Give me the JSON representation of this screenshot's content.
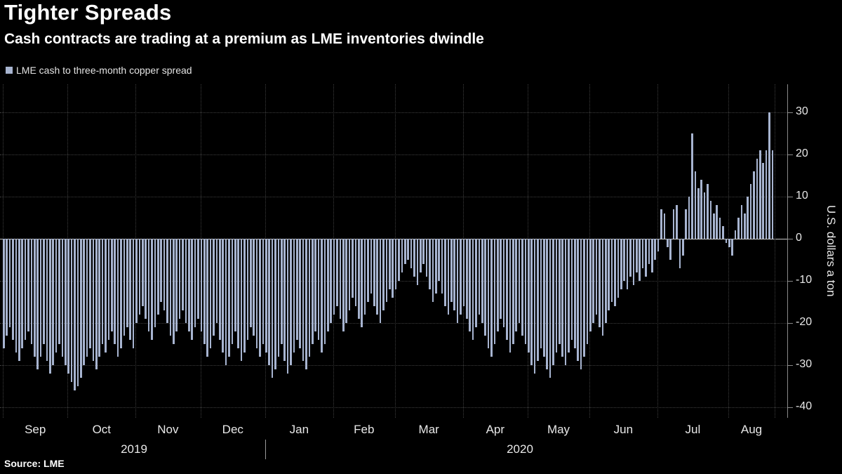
{
  "header": {
    "title": "Tighter Spreads",
    "subtitle": "Cash contracts are trading at a premium as LME inventories dwindle"
  },
  "legend": {
    "label": "LME cash to three-month copper spread",
    "swatch_color": "#a7b4d0"
  },
  "source": {
    "label": "Source: LME"
  },
  "chart_data": {
    "type": "bar",
    "title": "Tighter Spreads",
    "series_name": "LME cash to three-month copper spread",
    "ylabel": "U.S. dollars a ton",
    "ylim": [
      -43,
      33
    ],
    "yticks": [
      30,
      20,
      10,
      0,
      -10,
      -20,
      -30,
      -40
    ],
    "grid": "dotted",
    "legend_position": "top-left",
    "bar_color": "#a7b4d0",
    "x_month_labels": [
      "Sep",
      "Oct",
      "Nov",
      "Dec",
      "Jan",
      "Feb",
      "Mar",
      "Apr",
      "May",
      "Jun",
      "Jul",
      "Aug"
    ],
    "month_start_indices": [
      0,
      21,
      43,
      64,
      85,
      107,
      127,
      149,
      170,
      190,
      212,
      235
    ],
    "years": [
      {
        "label": "2019",
        "start_index": 0,
        "end_index": 85
      },
      {
        "label": "2020",
        "start_index": 85,
        "end_index": 250
      }
    ],
    "values": [
      -26,
      -23,
      -21,
      -24,
      -27,
      -29,
      -26,
      -24,
      -22,
      -25,
      -28,
      -31,
      -28,
      -25,
      -29,
      -32,
      -30,
      -27,
      -25,
      -28,
      -30,
      -32,
      -34,
      -36,
      -35,
      -33,
      -30,
      -28,
      -26,
      -29,
      -31,
      -28,
      -25,
      -27,
      -24,
      -22,
      -25,
      -28,
      -26,
      -23,
      -21,
      -24,
      -26,
      -20,
      -18,
      -16,
      -19,
      -22,
      -24,
      -21,
      -18,
      -15,
      -17,
      -20,
      -23,
      -25,
      -22,
      -19,
      -17,
      -20,
      -22,
      -24,
      -21,
      -19,
      -22,
      -25,
      -28,
      -26,
      -23,
      -20,
      -24,
      -27,
      -30,
      -28,
      -25,
      -22,
      -26,
      -29,
      -27,
      -24,
      -21,
      -23,
      -26,
      -28,
      -25,
      -27,
      -30,
      -33,
      -31,
      -28,
      -25,
      -29,
      -32,
      -30,
      -27,
      -24,
      -26,
      -29,
      -31,
      -28,
      -25,
      -22,
      -24,
      -27,
      -25,
      -22,
      -20,
      -18,
      -16,
      -19,
      -22,
      -20,
      -17,
      -14,
      -16,
      -19,
      -21,
      -18,
      -15,
      -13,
      -16,
      -18,
      -20,
      -17,
      -15,
      -12,
      -14,
      -12,
      -10,
      -8,
      -6,
      -5,
      -7,
      -9,
      -11,
      -8,
      -6,
      -9,
      -12,
      -15,
      -13,
      -10,
      -13,
      -16,
      -18,
      -15,
      -17,
      -20,
      -18,
      -16,
      -19,
      -22,
      -24,
      -21,
      -18,
      -20,
      -23,
      -26,
      -28,
      -25,
      -22,
      -19,
      -21,
      -24,
      -27,
      -25,
      -22,
      -20,
      -23,
      -25,
      -27,
      -30,
      -32,
      -29,
      -26,
      -28,
      -31,
      -33,
      -30,
      -27,
      -25,
      -28,
      -30,
      -27,
      -24,
      -26,
      -29,
      -31,
      -28,
      -25,
      -22,
      -20,
      -18,
      -21,
      -23,
      -20,
      -17,
      -15,
      -16,
      -14,
      -12,
      -10,
      -12,
      -9,
      -11,
      -8,
      -10,
      -7,
      -9,
      -6,
      -8,
      -5,
      -3,
      7,
      6,
      -2,
      -5,
      7,
      8,
      -7,
      -4,
      7,
      10,
      25,
      16,
      12,
      14,
      11,
      13,
      9,
      6,
      8,
      5,
      3,
      -1,
      -2,
      -4,
      2,
      5,
      8,
      6,
      10,
      13,
      16,
      19,
      21,
      18,
      21,
      30,
      21
    ]
  }
}
